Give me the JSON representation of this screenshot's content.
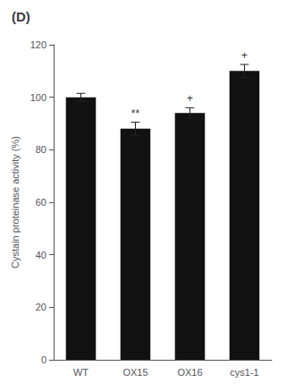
{
  "chart_data": {
    "type": "bar",
    "title": "(D)",
    "categories": [
      "WT",
      "OX15",
      "OX16",
      "cys1-1"
    ],
    "values": [
      100,
      88,
      94,
      110
    ],
    "errors": [
      1.5,
      2.5,
      2.0,
      2.5
    ],
    "annotations": [
      null,
      "**",
      "+",
      "+"
    ],
    "ylabel": "Cystain proteinase activity (%)",
    "ylim": [
      0,
      120
    ],
    "yticks": [
      0,
      20,
      40,
      60,
      80,
      100,
      120
    ],
    "color": "#111111",
    "grid": false
  }
}
